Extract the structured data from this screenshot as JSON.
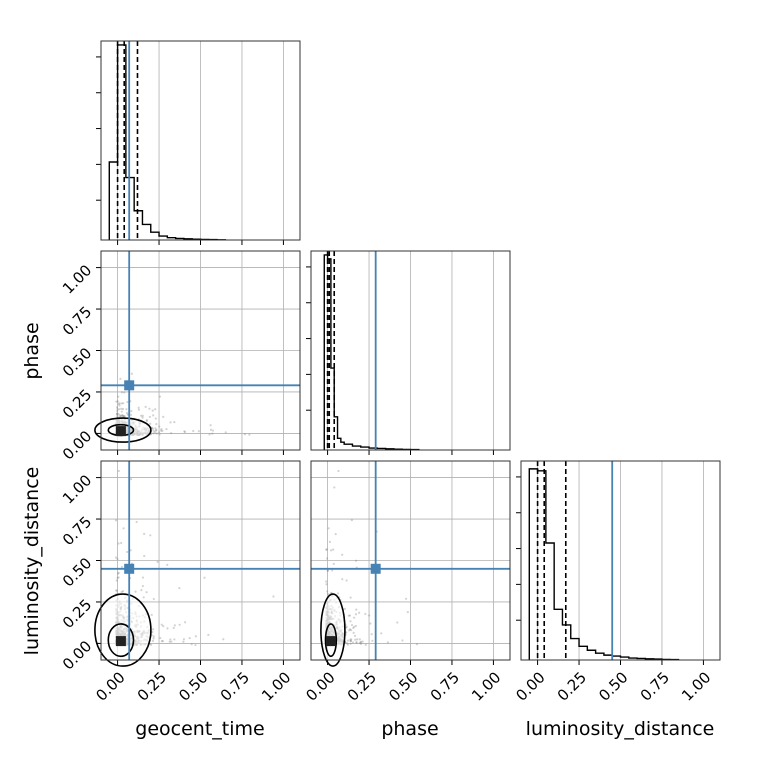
{
  "chart_data": {
    "type": "corner",
    "parameters": [
      "geocent_time",
      "phase",
      "luminosity_distance"
    ],
    "range": [
      -0.1,
      1.1
    ],
    "tick_values": [
      0.0,
      0.25,
      0.5,
      0.75,
      1.0
    ],
    "tick_labels": [
      "0.00",
      "0.25",
      "0.50",
      "0.75",
      "1.00"
    ],
    "truths": {
      "geocent_time": 0.07,
      "phase": 0.29,
      "luminosity_distance": 0.45
    },
    "quantiles": {
      "geocent_time": [
        0.0,
        0.04,
        0.12
      ],
      "phase": [
        0.0,
        0.01,
        0.04
      ],
      "luminosity_distance": [
        0.0,
        0.04,
        0.17
      ]
    },
    "histograms": {
      "geocent_time": {
        "bin_edges": [
          -0.05,
          0.0,
          0.05,
          0.1,
          0.15,
          0.2,
          0.25,
          0.3,
          0.35,
          0.4,
          0.45,
          0.5,
          0.55,
          0.6,
          0.65
        ],
        "counts": [
          0.4,
          1.0,
          0.32,
          0.15,
          0.08,
          0.04,
          0.02,
          0.012,
          0.008,
          0.006,
          0.004,
          0.003,
          0.002,
          0.001
        ]
      },
      "phase": {
        "bin_edges": [
          -0.02,
          0.0,
          0.02,
          0.04,
          0.06,
          0.08,
          0.1,
          0.15,
          0.2,
          0.25,
          0.3,
          0.35,
          0.4,
          0.45,
          0.5,
          0.55
        ],
        "counts": [
          1.0,
          0.98,
          0.42,
          0.17,
          0.06,
          0.04,
          0.03,
          0.02,
          0.015,
          0.01,
          0.008,
          0.006,
          0.004,
          0.003,
          0.002
        ]
      },
      "luminosity_distance": {
        "bin_edges": [
          -0.05,
          0.0,
          0.05,
          0.1,
          0.15,
          0.2,
          0.25,
          0.3,
          0.35,
          0.4,
          0.45,
          0.5,
          0.55,
          0.6,
          0.65,
          0.7,
          0.75,
          0.8,
          0.85
        ],
        "counts": [
          0.98,
          0.97,
          0.6,
          0.26,
          0.18,
          0.11,
          0.07,
          0.05,
          0.035,
          0.025,
          0.02,
          0.015,
          0.01,
          0.008,
          0.006,
          0.005,
          0.003,
          0.002
        ]
      }
    },
    "grid": true,
    "colors": {
      "truth": "#4682b4",
      "hist": "#000000",
      "points": "#808080",
      "grid": "#b0b0b0"
    }
  }
}
